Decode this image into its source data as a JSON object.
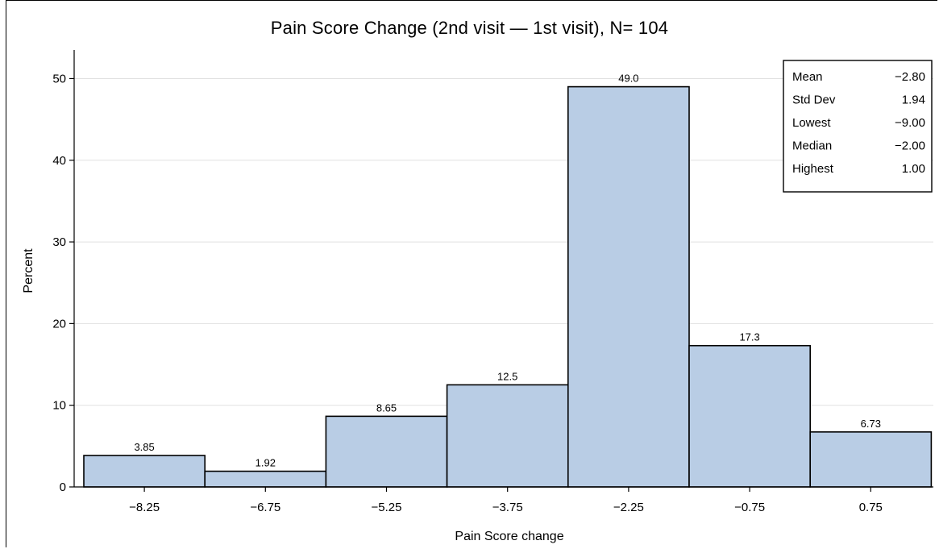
{
  "chart_data": {
    "type": "bar",
    "title": "Pain Score Change (2nd visit — 1st visit), N= 104",
    "xlabel": "Pain Score change",
    "ylabel": "Percent",
    "categories": [
      "−8.25",
      "−6.75",
      "−5.25",
      "−3.75",
      "−2.25",
      "−0.75",
      "0.75"
    ],
    "values": [
      3.85,
      1.92,
      8.65,
      12.5,
      49.0,
      17.3,
      6.73
    ],
    "value_labels": [
      "3.85",
      "1.92",
      "8.65",
      "12.5",
      "49.0",
      "17.3",
      "6.73"
    ],
    "ylim": [
      0,
      53.5
    ],
    "yticks": [
      0,
      10,
      20,
      30,
      40,
      50
    ],
    "grid": true,
    "bar_color": "#b9cde5",
    "stats_inset": {
      "placement": "top-right",
      "rows": [
        {
          "label": "Mean",
          "value": "−2.80"
        },
        {
          "label": "Std Dev",
          "value": "1.94"
        },
        {
          "label": "Lowest",
          "value": "−9.00"
        },
        {
          "label": "Median",
          "value": "−2.00"
        },
        {
          "label": "Highest",
          "value": "1.00"
        }
      ]
    }
  }
}
